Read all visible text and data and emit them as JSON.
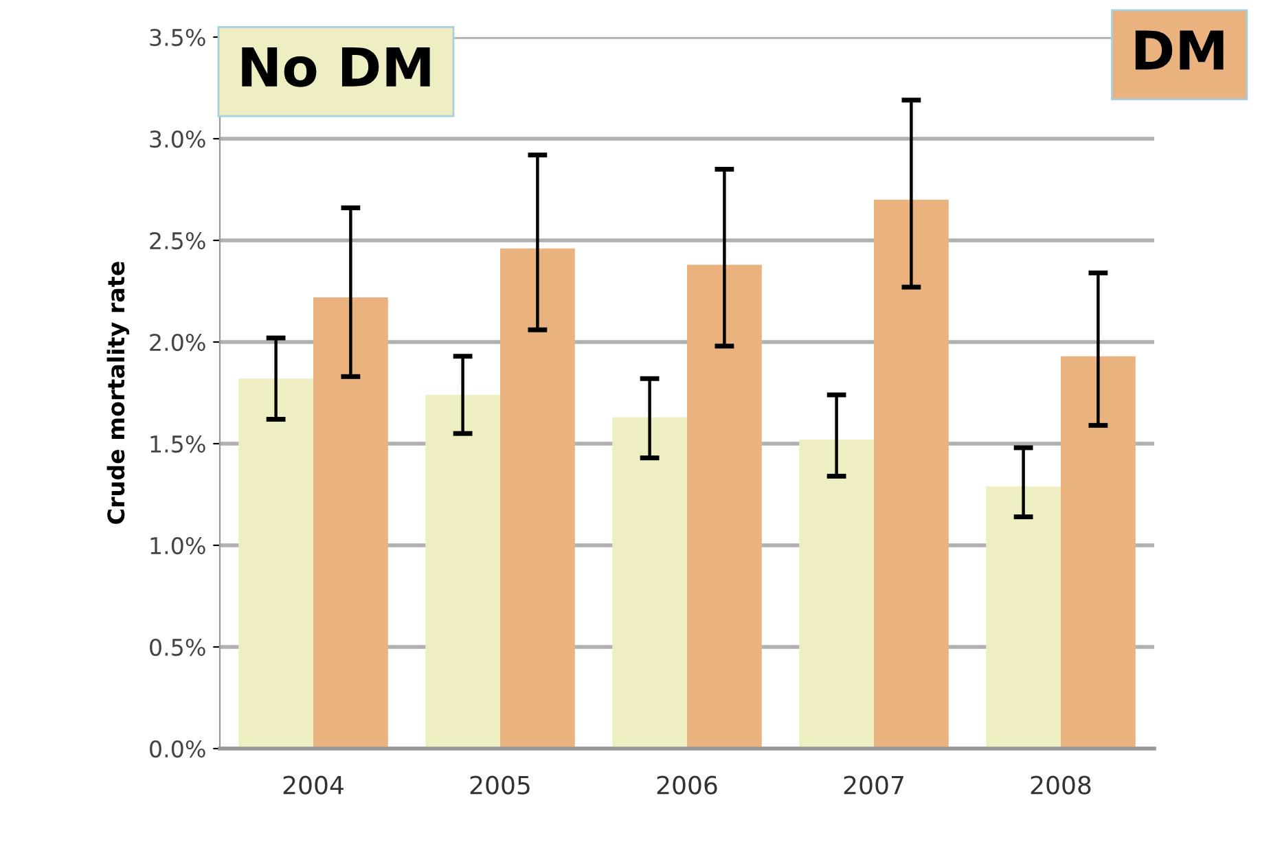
{
  "chart_data": {
    "type": "bar",
    "ylabel": "Crude mortality rate",
    "categories": [
      "2004",
      "2005",
      "2006",
      "2007",
      "2008"
    ],
    "series": [
      {
        "name": "No DM",
        "color": "#eeeec2",
        "values": [
          1.82,
          1.74,
          1.63,
          1.52,
          1.29
        ],
        "errors": [
          [
            1.62,
            2.02
          ],
          [
            1.55,
            1.93
          ],
          [
            1.43,
            1.82
          ],
          [
            1.34,
            1.74
          ],
          [
            1.14,
            1.48
          ]
        ]
      },
      {
        "name": "DM",
        "color": "#e9b27f",
        "values": [
          2.22,
          2.46,
          2.38,
          2.7,
          1.93
        ],
        "errors": [
          [
            1.83,
            2.66
          ],
          [
            2.06,
            2.92
          ],
          [
            1.98,
            2.85
          ],
          [
            2.27,
            3.19
          ],
          [
            1.59,
            2.34
          ]
        ]
      }
    ],
    "ylim": [
      0,
      3.5
    ],
    "yticks": [
      {
        "value": 0,
        "label": "0.0%"
      },
      {
        "value": 0.5,
        "label": "0.5%"
      },
      {
        "value": 1.0,
        "label": "1.0%"
      },
      {
        "value": 1.5,
        "label": "1.5%"
      },
      {
        "value": 2.0,
        "label": "2.0%"
      },
      {
        "value": 2.5,
        "label": "2.5%"
      },
      {
        "value": 3.0,
        "label": "3.0%"
      },
      {
        "value": 3.5,
        "label": "3.5%"
      }
    ],
    "grid": "y",
    "legend": "top"
  }
}
